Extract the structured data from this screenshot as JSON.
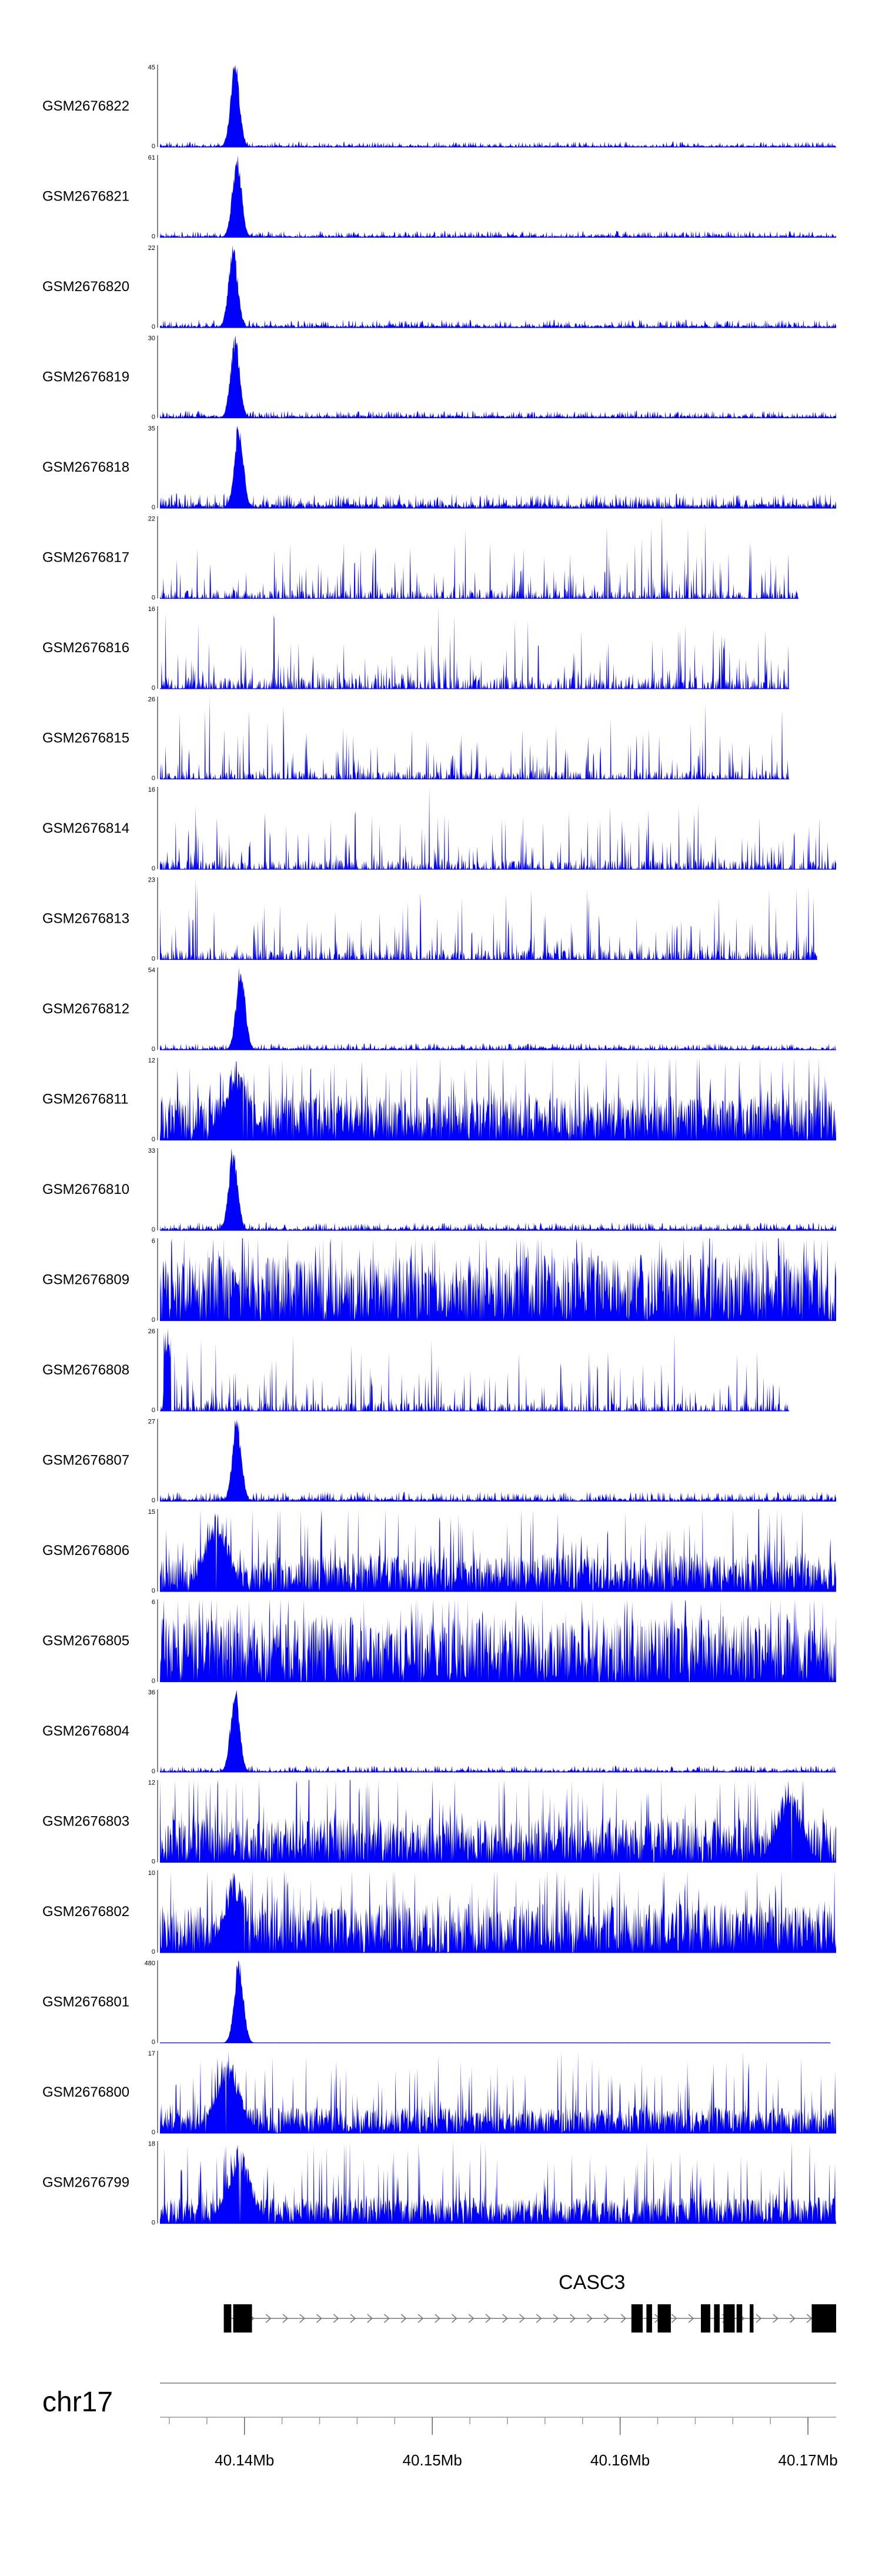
{
  "chart_data": {
    "type": "area",
    "title": "",
    "description_units": "genomic coverage tracks",
    "chromosome": "chr17",
    "x_range": [
      40.1355,
      40.1715
    ],
    "x_unit": "Mb",
    "x_ticks": [
      {
        "value": 40.14,
        "label": "40.14Mb"
      },
      {
        "value": 40.15,
        "label": "40.15Mb"
      },
      {
        "value": 40.16,
        "label": "40.16Mb"
      },
      {
        "value": 40.17,
        "label": "40.17Mb"
      }
    ],
    "tracks": [
      {
        "name": "GSM2676822",
        "ymax": 45,
        "ymin": 0,
        "color": "#0000ff",
        "profile": "peak",
        "peak_at": 40.1395,
        "peak_frac": 1.0,
        "noise": 0.07,
        "seed": 1,
        "x_end": 40.1715
      },
      {
        "name": "GSM2676821",
        "ymax": 61,
        "ymin": 0,
        "color": "#0000ff",
        "profile": "peak",
        "peak_at": 40.1396,
        "peak_frac": 1.0,
        "noise": 0.08,
        "seed": 2,
        "x_end": 40.1715
      },
      {
        "name": "GSM2676820",
        "ymax": 22,
        "ymin": 0,
        "color": "#0000ff",
        "profile": "peak",
        "peak_at": 40.1394,
        "peak_frac": 1.0,
        "noise": 0.1,
        "seed": 3,
        "x_end": 40.1715
      },
      {
        "name": "GSM2676819",
        "ymax": 30,
        "ymin": 0,
        "color": "#0000ff",
        "profile": "peak",
        "peak_at": 40.1395,
        "peak_frac": 1.0,
        "noise": 0.09,
        "seed": 4,
        "x_end": 40.1715
      },
      {
        "name": "GSM2676818",
        "ymax": 35,
        "ymin": 0,
        "color": "#0000ff",
        "profile": "peak",
        "peak_at": 40.1397,
        "peak_frac": 1.0,
        "noise": 0.18,
        "seed": 5,
        "x_end": 40.1715
      },
      {
        "name": "GSM2676817",
        "ymax": 22,
        "ymin": 0,
        "color": "#0000ff",
        "profile": "spiky",
        "noise": 0.35,
        "seed": 6,
        "x_end": 40.1695
      },
      {
        "name": "GSM2676816",
        "ymax": 16,
        "ymin": 0,
        "color": "#0000ff",
        "profile": "spiky",
        "noise": 0.5,
        "seed": 7,
        "x_end": 40.169
      },
      {
        "name": "GSM2676815",
        "ymax": 26,
        "ymin": 0,
        "color": "#0000ff",
        "profile": "spiky",
        "noise": 0.35,
        "seed": 8,
        "x_end": 40.169
      },
      {
        "name": "GSM2676814",
        "ymax": 16,
        "ymin": 0,
        "color": "#0000ff",
        "profile": "spiky",
        "noise": 0.4,
        "seed": 9,
        "x_end": 40.1715
      },
      {
        "name": "GSM2676813",
        "ymax": 23,
        "ymin": 0,
        "color": "#0000ff",
        "profile": "spiky",
        "noise": 0.4,
        "seed": 10,
        "x_end": 40.1705
      },
      {
        "name": "GSM2676812",
        "ymax": 54,
        "ymin": 0,
        "color": "#0000ff",
        "profile": "peak",
        "peak_at": 40.1398,
        "peak_frac": 1.0,
        "noise": 0.08,
        "seed": 11,
        "x_end": 40.1715
      },
      {
        "name": "GSM2676811",
        "ymax": 12,
        "ymin": 0,
        "color": "#0000ff",
        "profile": "dense",
        "peak_at": 40.1396,
        "peak_frac": 1.0,
        "noise": 0.55,
        "seed": 12,
        "x_end": 40.1715
      },
      {
        "name": "GSM2676810",
        "ymax": 33,
        "ymin": 0,
        "color": "#0000ff",
        "profile": "peak",
        "peak_at": 40.1394,
        "peak_frac": 1.0,
        "noise": 0.1,
        "seed": 13,
        "x_end": 40.1715
      },
      {
        "name": "GSM2676809",
        "ymax": 6,
        "ymin": 0,
        "color": "#0000ff",
        "profile": "dense",
        "noise": 0.8,
        "seed": 14,
        "x_end": 40.1715
      },
      {
        "name": "GSM2676808",
        "ymax": 26,
        "ymin": 0,
        "color": "#0000ff",
        "profile": "spiky",
        "peak_at": 40.1359,
        "peak_frac": 1.0,
        "noise": 0.35,
        "seed": 15,
        "x_end": 40.169
      },
      {
        "name": "GSM2676807",
        "ymax": 27,
        "ymin": 0,
        "color": "#0000ff",
        "profile": "peak",
        "peak_at": 40.1396,
        "peak_frac": 1.0,
        "noise": 0.12,
        "seed": 16,
        "x_end": 40.1715
      },
      {
        "name": "GSM2676806",
        "ymax": 15,
        "ymin": 0,
        "color": "#0000ff",
        "profile": "dense",
        "peak_at": 40.1385,
        "peak_frac": 1.0,
        "noise": 0.45,
        "seed": 17,
        "x_end": 40.1715
      },
      {
        "name": "GSM2676805",
        "ymax": 6,
        "ymin": 0,
        "color": "#0000ff",
        "profile": "dense",
        "noise": 0.8,
        "seed": 18,
        "x_end": 40.1715
      },
      {
        "name": "GSM2676804",
        "ymax": 36,
        "ymin": 0,
        "color": "#0000ff",
        "profile": "peak",
        "peak_at": 40.1395,
        "peak_frac": 1.0,
        "noise": 0.08,
        "seed": 19,
        "x_end": 40.1715
      },
      {
        "name": "GSM2676803",
        "ymax": 12,
        "ymin": 0,
        "color": "#0000ff",
        "profile": "dense",
        "peak_at": 40.169,
        "peak_frac": 1.0,
        "noise": 0.55,
        "seed": 20,
        "x_end": 40.1715
      },
      {
        "name": "GSM2676802",
        "ymax": 10,
        "ymin": 0,
        "color": "#0000ff",
        "profile": "dense",
        "peak_at": 40.1395,
        "peak_frac": 1.0,
        "noise": 0.6,
        "seed": 21,
        "x_end": 40.1715
      },
      {
        "name": "GSM2676801",
        "ymax": 480,
        "ymin": 0,
        "color": "#0000ff",
        "profile": "single",
        "peak_at": 40.1397,
        "peak_frac": 1.0,
        "noise": 0.005,
        "seed": 22,
        "x_end": 40.1712
      },
      {
        "name": "GSM2676800",
        "ymax": 17,
        "ymin": 0,
        "color": "#0000ff",
        "profile": "dense",
        "peak_at": 40.1391,
        "peak_frac": 1.0,
        "noise": 0.32,
        "seed": 23,
        "x_end": 40.1715
      },
      {
        "name": "GSM2676799",
        "ymax": 18,
        "ymin": 0,
        "color": "#0000ff",
        "profile": "dense",
        "peak_at": 40.1397,
        "peak_frac": 1.0,
        "noise": 0.32,
        "seed": 24,
        "x_end": 40.1715
      }
    ],
    "gene": {
      "name": "CASC3",
      "strand": "+",
      "start": 40.1389,
      "end": 40.1715,
      "exons": [
        {
          "start": 40.1389,
          "end": 40.1393
        },
        {
          "start": 40.1394,
          "end": 40.1404
        },
        {
          "start": 40.1606,
          "end": 40.1612
        },
        {
          "start": 40.1614,
          "end": 40.1617
        },
        {
          "start": 40.162,
          "end": 40.1627
        },
        {
          "start": 40.1643,
          "end": 40.1648
        },
        {
          "start": 40.165,
          "end": 40.1653
        },
        {
          "start": 40.1655,
          "end": 40.1661
        },
        {
          "start": 40.1662,
          "end": 40.1665
        },
        {
          "start": 40.1669,
          "end": 40.1671
        },
        {
          "start": 40.1702,
          "end": 40.1715
        }
      ]
    }
  }
}
